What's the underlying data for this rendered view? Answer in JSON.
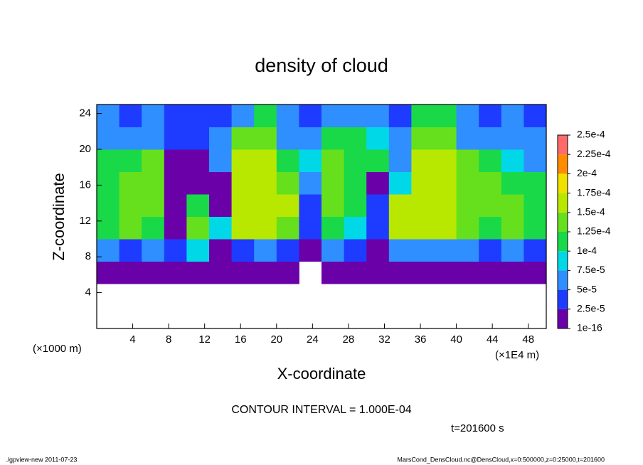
{
  "chart_data": {
    "type": "heatmap",
    "title": "density of cloud",
    "x_label": "X-coordinate",
    "y_label": "Z-coordinate",
    "y_unit": "(×1000 m)",
    "x_unit": "(×1E4 m)",
    "note": "CONTOUR INTERVAL = 1.000E-04",
    "time": "t=201600 s",
    "footer_left": "./gpview-new  2011-07-23",
    "footer_right": "MarsCond_DensCloud.nc@DensCloud,x=0:500000,z=0:25000,t=201600",
    "xlim": [
      0,
      50
    ],
    "ylim": [
      0,
      25
    ],
    "xticks": [
      4,
      8,
      12,
      16,
      20,
      24,
      28,
      32,
      36,
      40,
      44,
      48
    ],
    "yticks": [
      4,
      8,
      12,
      16,
      20,
      24
    ],
    "x_edges": [
      0,
      2.5,
      5,
      7.5,
      10,
      12.5,
      15,
      17.5,
      20,
      22.5,
      25,
      27.5,
      30,
      32.5,
      35,
      37.5,
      40,
      42.5,
      45,
      47.5,
      50
    ],
    "y_edges": [
      0,
      2.5,
      5,
      7.5,
      10,
      12.5,
      15,
      17.5,
      20,
      22.5,
      25
    ],
    "z_values": [
      [
        null,
        null,
        null,
        null,
        null,
        null,
        null,
        null,
        null,
        null,
        null,
        null,
        null,
        null,
        null,
        null,
        null,
        null,
        null,
        null
      ],
      [
        null,
        null,
        null,
        null,
        null,
        null,
        null,
        null,
        null,
        null,
        null,
        null,
        null,
        null,
        null,
        null,
        null,
        null,
        null,
        null
      ],
      [
        1e-05,
        1e-05,
        1e-05,
        1e-05,
        1e-05,
        1e-05,
        1e-05,
        1e-05,
        1e-05,
        null,
        1e-05,
        1e-05,
        1e-05,
        1e-05,
        1e-05,
        1e-05,
        1e-05,
        1e-05,
        1e-05,
        1e-05
      ],
      [
        5e-05,
        4e-05,
        6e-05,
        3e-05,
        8e-05,
        1e-05,
        3e-05,
        5e-05,
        4e-05,
        1e-05,
        5e-05,
        3e-05,
        2e-05,
        5e-05,
        6e-05,
        6e-05,
        5e-05,
        4e-05,
        5e-05,
        3e-05
      ],
      [
        0.00011,
        0.00013,
        0.00012,
        1e-05,
        0.00013,
        8e-05,
        0.00015,
        0.00016,
        0.00014,
        3e-05,
        0.00012,
        9e-05,
        3e-05,
        0.00015,
        0.00017,
        0.00016,
        0.00013,
        0.00012,
        0.00013,
        0.00011
      ],
      [
        0.00012,
        0.00014,
        0.00013,
        1e-05,
        0.00012,
        2e-05,
        0.00016,
        0.00017,
        0.00015,
        4e-05,
        0.00013,
        0.00011,
        3e-05,
        0.00015,
        0.00017,
        0.00016,
        0.00014,
        0.00013,
        0.00014,
        0.00011
      ],
      [
        0.00011,
        0.00013,
        0.00014,
        1e-05,
        1e-05,
        1e-05,
        0.00016,
        0.00016,
        0.00014,
        5e-05,
        0.00013,
        0.00012,
        2e-05,
        8e-05,
        0.00016,
        0.00016,
        0.00014,
        0.00013,
        0.00012,
        0.0001
      ],
      [
        0.0001,
        0.00012,
        0.00013,
        1e-05,
        1e-05,
        5e-05,
        0.00015,
        0.00015,
        0.00012,
        8e-05,
        0.00013,
        0.00012,
        0.0001,
        7e-05,
        0.00015,
        0.00015,
        0.00013,
        0.00011,
        8e-05,
        6e-05
      ],
      [
        6e-05,
        5e-05,
        6e-05,
        4e-05,
        4e-05,
        5e-05,
        0.00013,
        0.00014,
        6e-05,
        5e-05,
        0.00012,
        0.00011,
        9e-05,
        6e-05,
        0.00014,
        0.00014,
        7e-05,
        5e-05,
        6e-05,
        5e-05
      ],
      [
        5e-05,
        4e-05,
        5e-05,
        4e-05,
        3e-05,
        4e-05,
        6e-05,
        0.00011,
        5e-05,
        4e-05,
        5e-05,
        6e-05,
        5e-05,
        4e-05,
        0.00011,
        0.0001,
        5e-05,
        4e-05,
        5e-05,
        4e-05
      ]
    ],
    "levels": [
      {
        "value": 1e-16,
        "label": "1e-16"
      },
      {
        "value": 2.5e-05,
        "label": "2.5e-5"
      },
      {
        "value": 5e-05,
        "label": "5e-5"
      },
      {
        "value": 7.5e-05,
        "label": "7.5e-5"
      },
      {
        "value": 0.0001,
        "label": "1e-4"
      },
      {
        "value": 0.000125,
        "label": "1.25e-4"
      },
      {
        "value": 0.00015,
        "label": "1.5e-4"
      },
      {
        "value": 0.000175,
        "label": "1.75e-4"
      },
      {
        "value": 0.0002,
        "label": "2e-4"
      },
      {
        "value": 0.000225,
        "label": "2.25e-4"
      },
      {
        "value": 0.00025,
        "label": "2.5e-4"
      }
    ],
    "colors": [
      "#6a00a8",
      "#1e3cff",
      "#2f8fff",
      "#00d8e8",
      "#19d949",
      "#66e01c",
      "#b8e800",
      "#f0e000",
      "#ff8c00",
      "#ff6a6a"
    ]
  }
}
